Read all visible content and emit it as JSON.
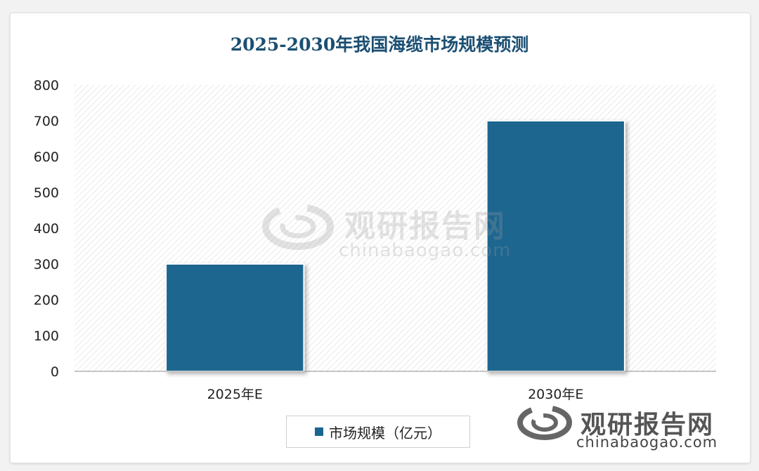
{
  "chart_data": {
    "type": "bar",
    "title": "2025-2030年我国海缆市场规模预测",
    "categories": [
      "2025年E",
      "2030年E"
    ],
    "series": [
      {
        "name": "市场规模（亿元）",
        "values": [
          300,
          700
        ]
      }
    ],
    "xlabel": "",
    "ylabel": "",
    "ylim": [
      0,
      800
    ],
    "yticks": [
      0,
      100,
      200,
      300,
      400,
      500,
      600,
      700,
      800
    ],
    "grid": false,
    "legend": "bottom-center",
    "bar_color": "#1a6690",
    "title_color": "#1b4f72"
  },
  "watermark": {
    "cn": "观研报告网",
    "en": "chinabaogao.com",
    "logo_icon": "swirl-logo-icon"
  }
}
